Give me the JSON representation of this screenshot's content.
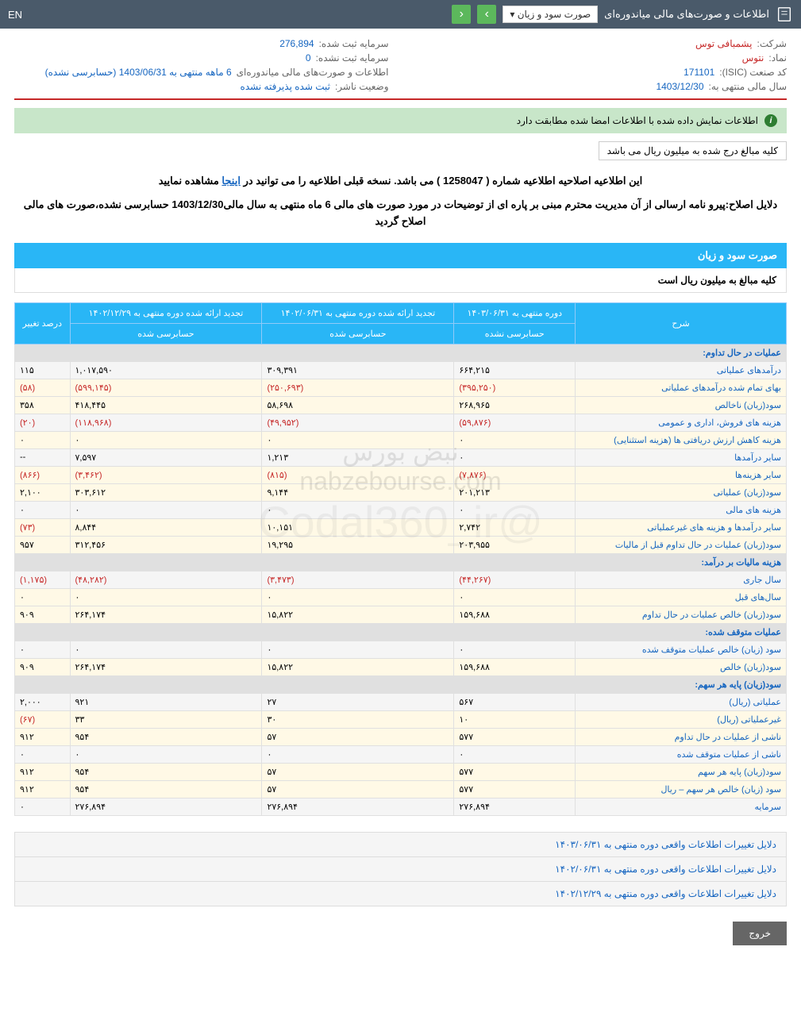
{
  "topbar": {
    "title": "اطلاعات و صورت‌های مالی میاندوره‌ای",
    "dropdown": "صورت سود و زیان",
    "en": "EN"
  },
  "info": {
    "company_label": "شرکت:",
    "company_value": "پشمبافی توس",
    "capital_reg_label": "سرمایه ثبت شده:",
    "capital_reg_value": "276,894",
    "symbol_label": "نماد:",
    "symbol_value": "نتوس",
    "capital_unreg_label": "سرمایه ثبت نشده:",
    "capital_unreg_value": "0",
    "isic_label": "کد صنعت (ISIC):",
    "isic_value": "171101",
    "report_label": "اطلاعات و صورت‌های مالی میاندوره‌ای",
    "report_detail": "6 ماهه منتهی به 1403/06/31 (حسابرسی نشده)",
    "year_label": "سال مالی منتهی به:",
    "year_value": "1403/12/30",
    "status_label": "وضعیت ناشر:",
    "status_value": "ثبت شده پذیرفته نشده"
  },
  "banner": "اطلاعات نمایش داده شده با اطلاعات امضا شده مطابقت دارد",
  "currency_note": "کلیه مبالغ درج شده به میلیون ریال می باشد",
  "notice_pre": "این اطلاعیه اصلاحیه اطلاعیه شماره ( 1258047 ) می باشد. نسخه قبلی اطلاعیه را می توانید در",
  "notice_link": "اینجا",
  "notice_post": "مشاهده نمایید",
  "reason": "دلایل اصلاح:پیرو نامه ارسالی از آن مدیریت محترم مبنی بر پاره ای از توضیحات در مورد صورت های مالی 6 ماه منتهی به سال مالی1403/12/30 حسابرسی نشده،صورت های مالی اصلاح گردید",
  "section_title": "صورت سود و زیان",
  "section_sub": "کلیه مبالغ به میلیون ریال است",
  "headers": {
    "desc": "شرح",
    "col1_top": "دوره منتهی به ۱۴۰۳/۰۶/۳۱",
    "col1_bot": "حسابرسی نشده",
    "col2_top": "تجدید ارائه شده دوره منتهی به ۱۴۰۲/۰۶/۳۱",
    "col2_bot": "حسابرسی شده",
    "col3_top": "تجدید ارائه شده دوره منتهی به ۱۴۰۲/۱۲/۲۹",
    "col3_bot": "حسابرسی شده",
    "col4": "درصد تغییر"
  },
  "rows": [
    {
      "type": "section",
      "label": "عملیات در حال تداوم:"
    },
    {
      "type": "norm",
      "label": "درآمدهای عملیاتی",
      "c1": "۶۶۴,۲۱۵",
      "c2": "۳۰۹,۳۹۱",
      "c3": "۱,۰۱۷,۵۹۰",
      "c4": "۱۱۵"
    },
    {
      "type": "alt",
      "label": "بهای تمام شده درآمدهای عملیاتی",
      "c1": "(۳۹۵,۲۵۰)",
      "c2": "(۲۵۰,۶۹۳)",
      "c3": "(۵۹۹,۱۴۵)",
      "c4": "(۵۸)",
      "neg": true
    },
    {
      "type": "alt",
      "label": "سود(زیان) ناخالص",
      "c1": "۲۶۸,۹۶۵",
      "c2": "۵۸,۶۹۸",
      "c3": "۴۱۸,۴۴۵",
      "c4": "۳۵۸"
    },
    {
      "type": "norm",
      "label": "هزینه های فروش، اداری و عمومی",
      "c1": "(۵۹,۸۷۶)",
      "c2": "(۴۹,۹۵۲)",
      "c3": "(۱۱۸,۹۶۸)",
      "c4": "(۲۰)",
      "neg": true
    },
    {
      "type": "alt",
      "label": "هزینه کاهش ارزش دریافتی ها (هزینه استثنایی)",
      "c1": "۰",
      "c2": "۰",
      "c3": "۰",
      "c4": "۰"
    },
    {
      "type": "norm",
      "label": "سایر درآمدها",
      "c1": "۰",
      "c2": "۱,۲۱۳",
      "c3": "۷,۵۹۷",
      "c4": "--"
    },
    {
      "type": "alt",
      "label": "سایر هزینه‌ها",
      "c1": "(۷,۸۷۶)",
      "c2": "(۸۱۵)",
      "c3": "(۳,۴۶۲)",
      "c4": "(۸۶۶)",
      "neg": true
    },
    {
      "type": "alt",
      "label": "سود(زیان) عملیاتی",
      "c1": "۲۰۱,۲۱۳",
      "c2": "۹,۱۴۴",
      "c3": "۳۰۳,۶۱۲",
      "c4": "۲,۱۰۰"
    },
    {
      "type": "norm",
      "label": "هزینه های مالی",
      "c1": "۰",
      "c2": "۰",
      "c3": "۰",
      "c4": "۰"
    },
    {
      "type": "alt",
      "label": "سایر درآمدها و هزینه های غیرعملیاتی",
      "c1": "۲,۷۴۲",
      "c2": "۱۰,۱۵۱",
      "c3": "۸,۸۴۴",
      "c4": "(۷۳)",
      "neg4": true
    },
    {
      "type": "alt",
      "label": "سود(زیان) عملیات در حال تداوم قبل از مالیات",
      "c1": "۲۰۳,۹۵۵",
      "c2": "۱۹,۲۹۵",
      "c3": "۳۱۲,۴۵۶",
      "c4": "۹۵۷"
    },
    {
      "type": "section",
      "label": "هزینه مالیات بر درآمد:"
    },
    {
      "type": "norm",
      "label": "سال جاری",
      "c1": "(۴۴,۲۶۷)",
      "c2": "(۳,۴۷۳)",
      "c3": "(۴۸,۲۸۲)",
      "c4": "(۱,۱۷۵)",
      "neg": true
    },
    {
      "type": "alt",
      "label": "سال‌های قبل",
      "c1": "۰",
      "c2": "۰",
      "c3": "۰",
      "c4": "۰"
    },
    {
      "type": "alt",
      "label": "سود(زیان) خالص عملیات در حال تداوم",
      "c1": "۱۵۹,۶۸۸",
      "c2": "۱۵,۸۲۲",
      "c3": "۲۶۴,۱۷۴",
      "c4": "۹۰۹"
    },
    {
      "type": "section",
      "label": "عملیات متوقف شده:"
    },
    {
      "type": "norm",
      "label": "سود (زیان) خالص عملیات متوقف شده",
      "c1": "۰",
      "c2": "۰",
      "c3": "۰",
      "c4": "۰"
    },
    {
      "type": "alt",
      "label": "سود(زیان) خالص",
      "c1": "۱۵۹,۶۸۸",
      "c2": "۱۵,۸۲۲",
      "c3": "۲۶۴,۱۷۴",
      "c4": "۹۰۹"
    },
    {
      "type": "section",
      "label": "سود(زیان) پایه هر سهم:"
    },
    {
      "type": "norm",
      "label": "عملیاتی (ریال)",
      "c1": "۵۶۷",
      "c2": "۲۷",
      "c3": "۹۲۱",
      "c4": "۲,۰۰۰"
    },
    {
      "type": "alt",
      "label": "غیرعملیاتی (ریال)",
      "c1": "۱۰",
      "c2": "۳۰",
      "c3": "۳۳",
      "c4": "(۶۷)",
      "neg4": true
    },
    {
      "type": "alt",
      "label": "ناشی از عملیات در حال تداوم",
      "c1": "۵۷۷",
      "c2": "۵۷",
      "c3": "۹۵۴",
      "c4": "۹۱۲"
    },
    {
      "type": "norm",
      "label": "ناشی از عملیات متوقف شده",
      "c1": "۰",
      "c2": "۰",
      "c3": "۰",
      "c4": "۰"
    },
    {
      "type": "alt",
      "label": "سود(زیان) پایه هر سهم",
      "c1": "۵۷۷",
      "c2": "۵۷",
      "c3": "۹۵۴",
      "c4": "۹۱۲"
    },
    {
      "type": "alt",
      "label": "سود (زیان) خالص هر سهم – ریال",
      "c1": "۵۷۷",
      "c2": "۵۷",
      "c3": "۹۵۴",
      "c4": "۹۱۲"
    },
    {
      "type": "norm",
      "label": "سرمایه",
      "c1": "۲۷۶,۸۹۴",
      "c2": "۲۷۶,۸۹۴",
      "c3": "۲۷۶,۸۹۴",
      "c4": "۰"
    }
  ],
  "footer_links": [
    "دلایل تغییرات اطلاعات واقعی دوره منتهی به ۱۴۰۳/۰۶/۳۱",
    "دلایل تغییرات اطلاعات واقعی دوره منتهی به ۱۴۰۲/۰۶/۳۱",
    "دلایل تغییرات اطلاعات واقعی دوره منتهی به ۱۴۰۲/۱۲/۲۹"
  ],
  "exit": "خروج",
  "watermark": {
    "site": "nabzebourse.com",
    "handle": "@Codal360_ir",
    "brand": "نبض بورس"
  }
}
